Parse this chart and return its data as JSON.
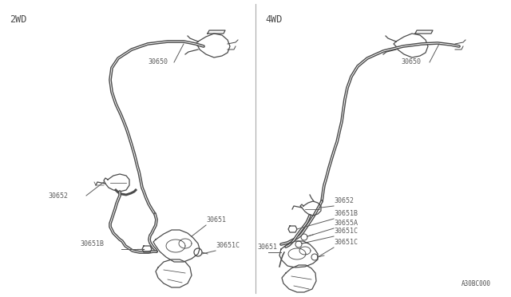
{
  "bg_color": "#ffffff",
  "line_color": "#4a4a4a",
  "label_color": "#5a5a5a",
  "divider_color": "#aaaaaa",
  "title_2wd": "2WD",
  "title_4wd": "4WD",
  "part_ref": "A30BC000",
  "font_size_title": 8.5,
  "font_size_label": 6.0,
  "font_size_ref": 5.5,
  "lw_pipe": 1.1,
  "lw_pipe2": 0.7,
  "lw_comp": 0.9
}
